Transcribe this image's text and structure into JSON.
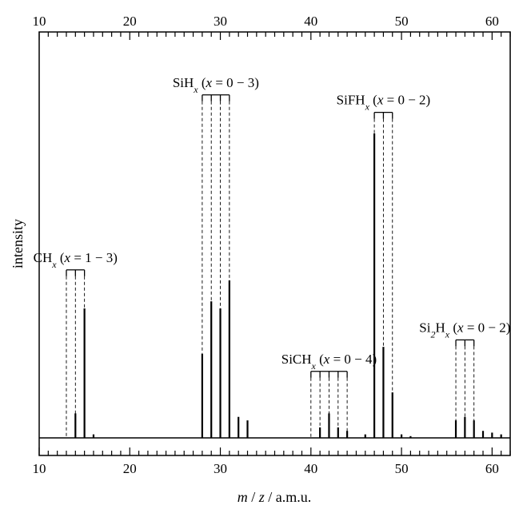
{
  "chart_data": {
    "type": "line",
    "title": "",
    "xlabel": "m / z / a.m.u.",
    "ylabel": "intensity",
    "xlim": [
      10,
      62
    ],
    "x_ticks": [
      10,
      20,
      30,
      40,
      50,
      60
    ],
    "grid": false,
    "series": [
      {
        "peaks": [
          {
            "x": 14,
            "y": 0.07
          },
          {
            "x": 15,
            "y": 0.37
          },
          {
            "x": 16,
            "y": 0.01
          },
          {
            "x": 28,
            "y": 0.24
          },
          {
            "x": 29,
            "y": 0.39
          },
          {
            "x": 30,
            "y": 0.37
          },
          {
            "x": 31,
            "y": 0.45
          },
          {
            "x": 32,
            "y": 0.06
          },
          {
            "x": 33,
            "y": 0.05
          },
          {
            "x": 41,
            "y": 0.03
          },
          {
            "x": 42,
            "y": 0.07
          },
          {
            "x": 43,
            "y": 0.03
          },
          {
            "x": 44,
            "y": 0.02
          },
          {
            "x": 46,
            "y": 0.01
          },
          {
            "x": 47,
            "y": 0.87
          },
          {
            "x": 48,
            "y": 0.26
          },
          {
            "x": 49,
            "y": 0.13
          },
          {
            "x": 50,
            "y": 0.01
          },
          {
            "x": 51,
            "y": 0.005
          },
          {
            "x": 56,
            "y": 0.05
          },
          {
            "x": 57,
            "y": 0.06
          },
          {
            "x": 58,
            "y": 0.05
          },
          {
            "x": 59,
            "y": 0.02
          },
          {
            "x": 60,
            "y": 0.015
          },
          {
            "x": 61,
            "y": 0.01
          }
        ]
      }
    ],
    "annotations": [
      {
        "id": "ch",
        "parts": [
          {
            "t": "CH"
          },
          {
            "t": "x",
            "sub": true
          },
          {
            "t": " ("
          },
          {
            "t": "x",
            "i": true
          },
          {
            "t": " = 1 − 3)"
          }
        ],
        "masses": [
          13,
          14,
          15
        ],
        "level": 0.48
      },
      {
        "id": "sih",
        "parts": [
          {
            "t": "SiH"
          },
          {
            "t": "x",
            "sub": true
          },
          {
            "t": " ("
          },
          {
            "t": "x",
            "i": true
          },
          {
            "t": " = 0 − 3)"
          }
        ],
        "masses": [
          28,
          29,
          30,
          31
        ],
        "level": 0.98
      },
      {
        "id": "sifh",
        "parts": [
          {
            "t": "SiFH"
          },
          {
            "t": "x",
            "sub": true
          },
          {
            "t": " ("
          },
          {
            "t": "x",
            "i": true
          },
          {
            "t": " = 0 − 2)"
          }
        ],
        "masses": [
          47,
          48,
          49
        ],
        "level": 0.93
      },
      {
        "id": "sich",
        "parts": [
          {
            "t": "SiCH"
          },
          {
            "t": "x",
            "sub": true
          },
          {
            "t": " ("
          },
          {
            "t": "x",
            "i": true
          },
          {
            "t": " = 0 − 4)"
          }
        ],
        "masses": [
          40,
          41,
          42,
          43,
          44
        ],
        "level": 0.19
      },
      {
        "id": "si2h",
        "parts": [
          {
            "t": "Si"
          },
          {
            "t": "2",
            "sub": true
          },
          {
            "t": "H"
          },
          {
            "t": "x",
            "sub": true
          },
          {
            "t": " ("
          },
          {
            "t": "x",
            "i": true
          },
          {
            "t": " = 0 − 2)"
          }
        ],
        "masses": [
          56,
          57,
          58
        ],
        "level": 0.28
      }
    ]
  }
}
